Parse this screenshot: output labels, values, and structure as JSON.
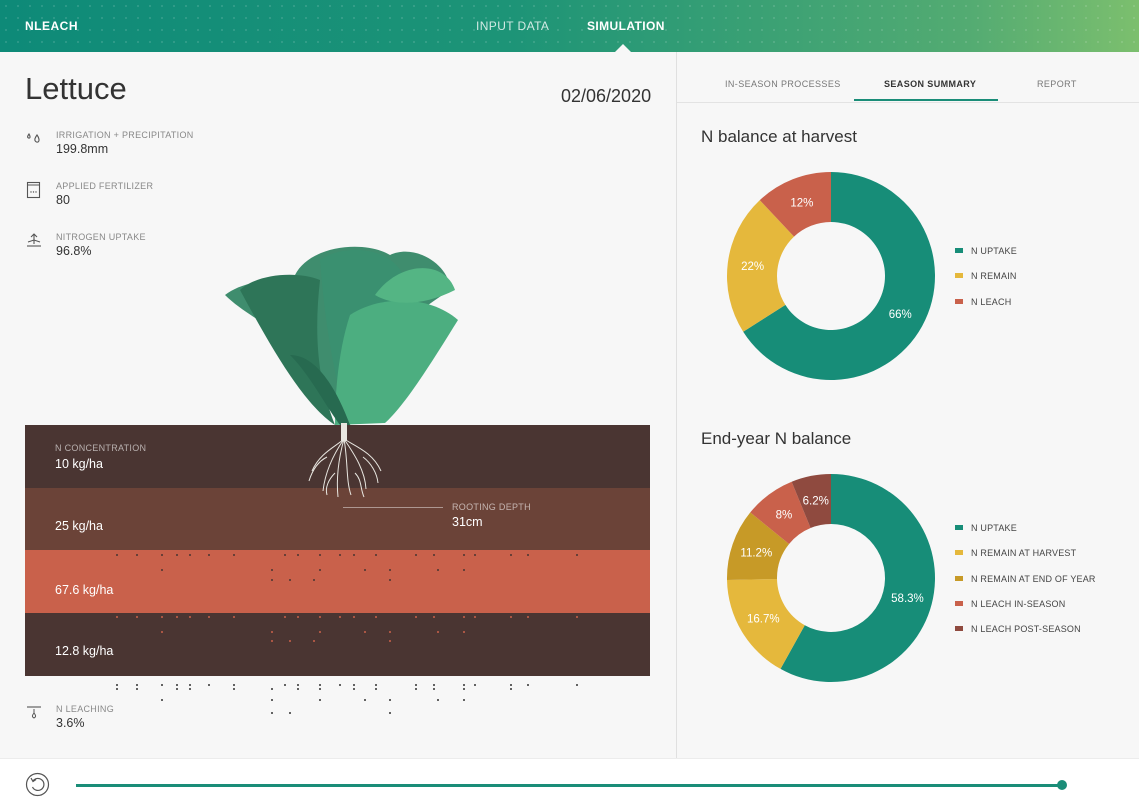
{
  "header": {
    "brand": "NLEACH",
    "nav": [
      {
        "label": "INPUT DATA"
      },
      {
        "label": "SIMULATION"
      }
    ]
  },
  "crop": {
    "name": "Lettuce",
    "date": "02/06/2020"
  },
  "stats": [
    {
      "label": "IRRIGATION + PRECIPITATION",
      "value": "199.8mm",
      "icon": "water-drops-icon"
    },
    {
      "label": "APPLIED FERTILIZER",
      "value": "80",
      "icon": "fertilizer-bag-icon"
    },
    {
      "label": "NITROGEN UPTAKE",
      "value": "96.8%",
      "icon": "uptake-arrow-icon"
    }
  ],
  "soil": {
    "caption": "N CONCENTRATION",
    "layers": [
      {
        "value": "10 kg/ha"
      },
      {
        "value": "25 kg/ha"
      },
      {
        "value": "67.6 kg/ha"
      },
      {
        "value": "12.8 kg/ha"
      }
    ],
    "rooting_depth": {
      "label": "ROOTING DEPTH",
      "value": "31cm"
    },
    "colors": [
      "#4a3532",
      "#6b4338",
      "#c9614b",
      "#4a3532"
    ]
  },
  "leaching": {
    "label": "N LEACHING",
    "value": "3.6%",
    "icon": "leaching-icon"
  },
  "tabs": [
    {
      "label": "IN-SEASON PROCESSES"
    },
    {
      "label": "SEASON SUMMARY"
    },
    {
      "label": "REPORT"
    }
  ],
  "chart_data": [
    {
      "type": "pie",
      "title": "N balance at harvest",
      "categories": [
        "N UPTAKE",
        "N REMAIN",
        "N LEACH"
      ],
      "values": [
        66,
        22,
        12
      ],
      "labels": [
        "66%",
        "22%",
        "12%"
      ],
      "colors": [
        "#178d78",
        "#e5b83c",
        "#c9614b"
      ],
      "legend": "right"
    },
    {
      "type": "pie",
      "title": "End-year N balance",
      "categories": [
        "N UPTAKE",
        "N REMAIN AT HARVEST",
        "N REMAIN AT END OF YEAR",
        "N LEACH IN-SEASON",
        "N LEACH POST-SEASON"
      ],
      "values": [
        58.3,
        16.7,
        11.2,
        8,
        6.2
      ],
      "labels": [
        "58.3%",
        "16.7%",
        "11.2%",
        "8%",
        "6.2%"
      ],
      "colors": [
        "#178d78",
        "#e5b83c",
        "#c79a27",
        "#c9614b",
        "#8f4a3f"
      ],
      "legend": "right"
    }
  ],
  "timeline": {
    "progress": 1.0,
    "icon": "replay-icon"
  }
}
